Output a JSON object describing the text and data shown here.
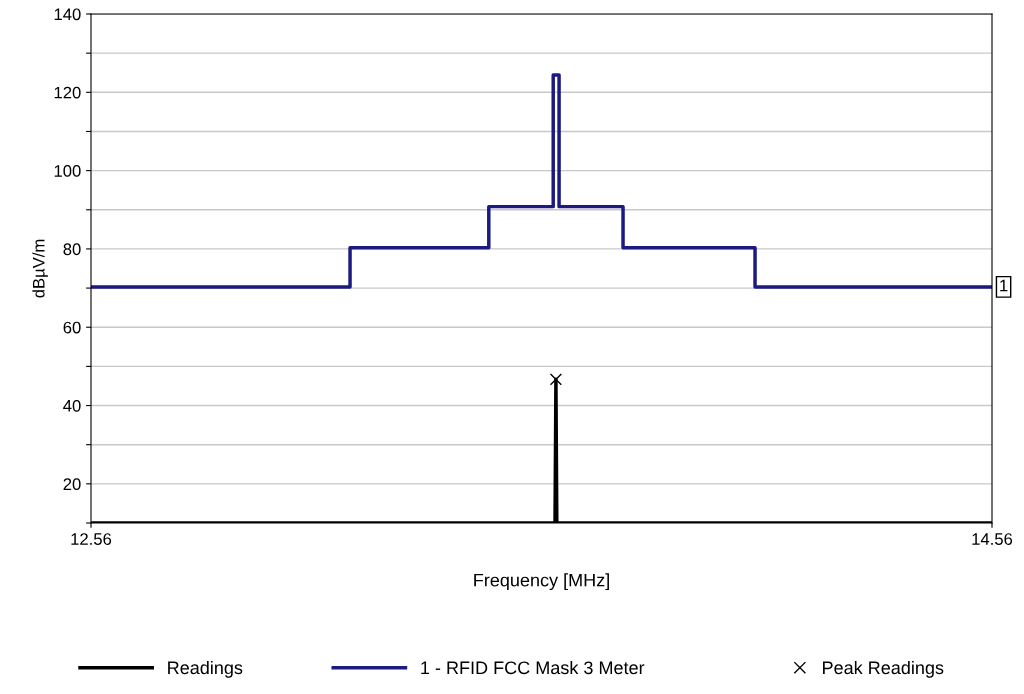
{
  "chart_data": {
    "type": "line",
    "xlabel": "Frequency [MHz]",
    "ylabel": "dBµV/m",
    "xlim": [
      12.56,
      14.56
    ],
    "xticks": [
      12.56,
      14.56
    ],
    "ylim": [
      10,
      140
    ],
    "yticks": [
      {
        "value": 10,
        "label": null
      },
      20,
      {
        "value": 30,
        "label": null
      },
      40,
      {
        "value": 50,
        "label": null
      },
      60,
      {
        "value": 70,
        "label": null
      },
      80,
      {
        "value": 90,
        "label": null
      },
      100,
      {
        "value": 110,
        "label": null
      },
      120,
      {
        "value": 130,
        "label": null
      },
      140
    ],
    "grid": "y",
    "legend": "bottom",
    "series": [
      {
        "name": "Readings",
        "color": "#000000",
        "x": [
          12.56,
          13.59,
          13.592,
          13.594,
          14.56
        ],
        "values": [
          10,
          10,
          46.7,
          10,
          10
        ]
      },
      {
        "name": "1 - RFID FCC Mask 3 Meter",
        "type": "step",
        "color": "#1a1a80",
        "x": [
          12.56,
          13.135,
          13.443,
          13.586,
          13.599,
          13.741,
          14.034,
          14.56
        ],
        "values": [
          70.3,
          80.3,
          90.8,
          124.4,
          90.8,
          80.3,
          70.3,
          70.3
        ]
      },
      {
        "name": "Peak Readings",
        "type": "scatter",
        "color": "#000000",
        "marker": "cross",
        "x": [
          13.592
        ],
        "values": [
          46.7
        ]
      }
    ],
    "annotations": [
      {
        "text": "1",
        "x": 14.56,
        "y": 70.3
      }
    ]
  }
}
